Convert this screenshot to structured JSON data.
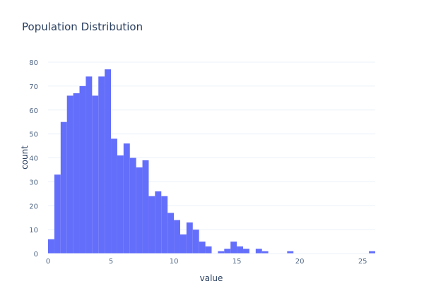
{
  "chart_data": {
    "type": "bar",
    "subtype": "histogram",
    "title": "Population Distribution",
    "xlabel": "value",
    "ylabel": "count",
    "bin_width": 0.5,
    "bin_start": 0,
    "counts": [
      6,
      33,
      55,
      66,
      67,
      70,
      74,
      66,
      74,
      77,
      48,
      41,
      46,
      40,
      36,
      39,
      24,
      26,
      24,
      17,
      14,
      8,
      13,
      10,
      5,
      3,
      0,
      1,
      2,
      5,
      3,
      2,
      0,
      2,
      1,
      0,
      0,
      0,
      1,
      0,
      0,
      0,
      0,
      0,
      0,
      0,
      0,
      0,
      0,
      0,
      0,
      1
    ],
    "xlim": [
      0,
      26
    ],
    "ylim": [
      0,
      80
    ],
    "x_ticks": [
      0,
      5,
      10,
      15,
      20,
      25
    ],
    "y_ticks": [
      0,
      10,
      20,
      30,
      40,
      50,
      60,
      70,
      80
    ],
    "grid": true,
    "legend": false,
    "bar_color": "#636efa",
    "gridline_color": "#ebf0f8"
  }
}
